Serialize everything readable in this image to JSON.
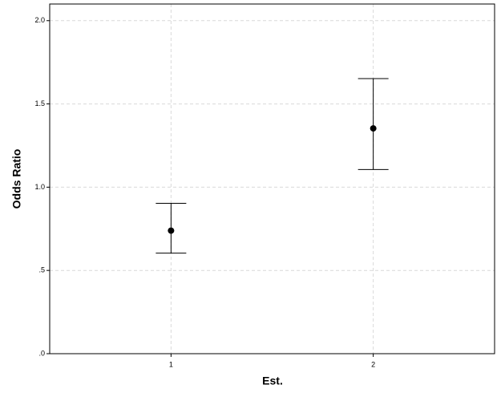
{
  "chart_data": {
    "type": "errorbar",
    "x_label": "Est.",
    "y_label": "Odds Ratio",
    "x": [
      1,
      2
    ],
    "values": [
      0.739,
      1.353
    ],
    "lower": [
      0.604,
      1.106
    ],
    "upper": [
      0.903,
      1.652
    ],
    "color": "#000000",
    "xlim": [
      0.4,
      2.6
    ],
    "xticks": [
      1,
      2
    ],
    "ylim": [
      0,
      2.1
    ],
    "yticks": [
      {
        "value": 0,
        "label": ".0"
      },
      {
        "value": 0.5,
        "label": ".5"
      },
      {
        "value": 1,
        "label": "1.0"
      },
      1.5,
      {
        "value": 2,
        "label": "2.0"
      }
    ],
    "grid": true
  }
}
